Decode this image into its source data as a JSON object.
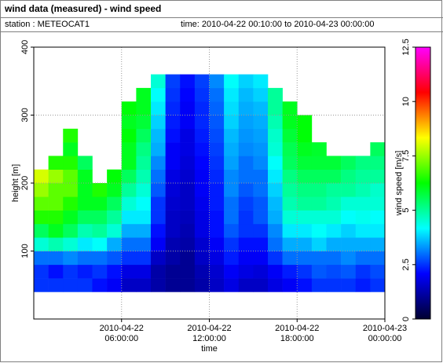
{
  "header": {
    "title": "wind data (measured) - wind speed",
    "station": "station : METEOCAT1",
    "time": "time: 2010-04-22 00:10:00 to 2010-04-23 00:00:00"
  },
  "chart_data": {
    "type": "heatmap",
    "xlabel": "time",
    "ylabel": "height [m]",
    "x": [
      0.5,
      1.5,
      2.5,
      3.5,
      4.5,
      5.5,
      6.5,
      7.5,
      8.5,
      9.5,
      10.5,
      11.5,
      12.5,
      13.5,
      14.5,
      15.5,
      16.5,
      17.5,
      18.5,
      19.5,
      20.5,
      21.5,
      22.5,
      23.5
    ],
    "y": [
      40,
      60,
      80,
      100,
      120,
      140,
      160,
      180,
      200,
      220,
      240,
      260,
      280,
      300,
      320,
      340
    ],
    "xlim": [
      0,
      24
    ],
    "xticks": [
      {
        "value": 6,
        "label": "2010-04-22 06:00:00"
      },
      {
        "value": 12,
        "label": "2010-04-22 12:00:00"
      },
      {
        "value": 18,
        "label": "2010-04-22 18:00:00"
      },
      {
        "value": 24,
        "label": "2010-04-23 00:00:00"
      }
    ],
    "ylim": [
      0,
      400
    ],
    "yticks": [
      100,
      200,
      300,
      400
    ],
    "grid": true,
    "values": [
      [
        2.5,
        2.5,
        2.5,
        2.5,
        2.2,
        2,
        1.5,
        1.5,
        1.2,
        1,
        1,
        1.2,
        1.5,
        1.8,
        1.5,
        1.5,
        1.8,
        2,
        2.2,
        2.5,
        2.5,
        2.5,
        2.3,
        2.5
      ],
      [
        2.5,
        2.2,
        2.5,
        2.3,
        2.5,
        2.2,
        1.8,
        1.8,
        1.2,
        1,
        1,
        1.3,
        1.6,
        2,
        1.8,
        1.7,
        2,
        2.3,
        2.5,
        2.8,
        2.7,
        2.8,
        2.5,
        2.7
      ],
      [
        3,
        3,
        3.2,
        3,
        3,
        2.8,
        2.5,
        2.5,
        1.5,
        1.2,
        1,
        1.5,
        1.8,
        2.3,
        2,
        2,
        2.5,
        3,
        3,
        3,
        3,
        3.2,
        3,
        3
      ],
      [
        4.5,
        4.8,
        4.5,
        4,
        4.2,
        3.5,
        3,
        3,
        2,
        1.3,
        1.2,
        1.6,
        2,
        2.5,
        2.2,
        2.2,
        3,
        3.5,
        3.5,
        3.8,
        3.5,
        3.5,
        3.5,
        3.5
      ],
      [
        5.5,
        6,
        5.5,
        4.8,
        5,
        4.5,
        3.5,
        3.5,
        2.2,
        1.5,
        1.3,
        1.8,
        2.2,
        2.8,
        2.5,
        2.5,
        3.2,
        4,
        4,
        4.2,
        4,
        3.8,
        4,
        4
      ],
      [
        6.5,
        6.5,
        6,
        5.5,
        5.5,
        5,
        4,
        4,
        2.5,
        1.5,
        1.4,
        1.8,
        2.2,
        3,
        2.5,
        2.8,
        3.5,
        4.5,
        4.5,
        4.5,
        4.5,
        4.2,
        4.3,
        4.2
      ],
      [
        7,
        7,
        6.5,
        6,
        6,
        5.5,
        4.5,
        4.2,
        2.5,
        1.6,
        1.5,
        1.9,
        2.3,
        3,
        2.6,
        2.8,
        3.6,
        4.8,
        5,
        5,
        4.8,
        4.5,
        4.5,
        4.5
      ],
      [
        7.5,
        7,
        7,
        6,
        6.5,
        6,
        5,
        4.5,
        2.8,
        1.7,
        1.5,
        2,
        2.3,
        3.2,
        2.8,
        3,
        3.8,
        5,
        5.2,
        5.2,
        5,
        5,
        4.8,
        4.6
      ],
      [
        8,
        7.5,
        7,
        6,
        null,
        6.2,
        5.5,
        4.8,
        3,
        1.8,
        1.6,
        2,
        2.4,
        3.2,
        3,
        3,
        4,
        5.2,
        5.5,
        5.5,
        5.5,
        5.2,
        5,
        5
      ],
      [
        null,
        6.5,
        6.5,
        5.5,
        null,
        null,
        6,
        5,
        3.2,
        2,
        1.7,
        2.1,
        2.5,
        3.4,
        3,
        3.2,
        4.2,
        5.5,
        5.8,
        5.8,
        5.8,
        5.5,
        5.2,
        5.2
      ],
      [
        null,
        null,
        6,
        null,
        null,
        null,
        6,
        5.2,
        3.5,
        2,
        1.8,
        2.2,
        2.6,
        3.5,
        3.2,
        3.3,
        4.5,
        5.6,
        6,
        5.9,
        null,
        null,
        null,
        5.5
      ],
      [
        null,
        null,
        6.5,
        null,
        null,
        null,
        6.2,
        5.5,
        3.6,
        2.2,
        1.8,
        2.3,
        2.7,
        3.6,
        3.3,
        3.4,
        4.6,
        5.8,
        6.2,
        null,
        null,
        null,
        null,
        null
      ],
      [
        null,
        null,
        null,
        null,
        null,
        null,
        6,
        5.8,
        3.8,
        2.3,
        2,
        2.4,
        2.8,
        3.8,
        3.4,
        3.5,
        4.8,
        6,
        6.2,
        null,
        null,
        null,
        null,
        null
      ],
      [
        null,
        null,
        null,
        null,
        null,
        null,
        6.2,
        6,
        4,
        2.4,
        2,
        2.4,
        2.9,
        3.9,
        3.5,
        3.6,
        5,
        6,
        null,
        null,
        null,
        null,
        null,
        null
      ],
      [
        null,
        null,
        null,
        null,
        null,
        null,
        null,
        6,
        4.2,
        2.5,
        2.1,
        2.5,
        3,
        4,
        3.6,
        3.8,
        5,
        null,
        null,
        null,
        null,
        null,
        null,
        null
      ],
      [
        null,
        null,
        null,
        null,
        null,
        null,
        null,
        null,
        4.5,
        2.6,
        2.2,
        2.6,
        3.2,
        4.2,
        3.8,
        4,
        null,
        null,
        null,
        null,
        null,
        null,
        null,
        null
      ]
    ],
    "colorbar": {
      "label": "wind speed [m/s]",
      "lim": [
        0,
        12.5
      ],
      "ticks": [
        0,
        2.5,
        5,
        7.5,
        10,
        12.5
      ],
      "colormap": [
        "#000030",
        "#0000ff",
        "#00ffff",
        "#00ff00",
        "#ffff00",
        "#ff0000",
        "#ff00ff"
      ]
    }
  }
}
